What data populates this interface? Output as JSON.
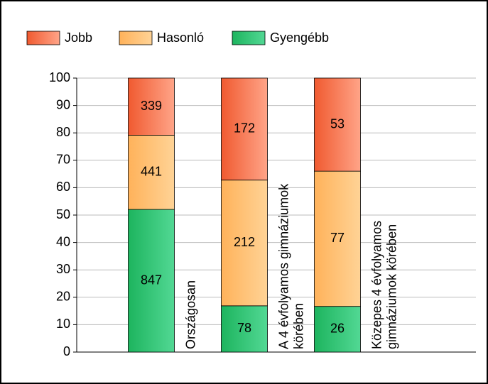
{
  "chart_data": {
    "type": "bar",
    "stacking": "percent",
    "categories": [
      [
        "Országosan"
      ],
      [
        "A 4 évfolyamos gimnáziumok",
        "körében"
      ],
      [
        "Közepes 4 évfolyamos",
        "gimnáziumok körében"
      ]
    ],
    "series": [
      {
        "name": "Jobb",
        "color": [
          "#f05a30",
          "#ffa488"
        ],
        "values": [
          339,
          172,
          53
        ]
      },
      {
        "name": "Hasonló",
        "color": [
          "#ffb25a",
          "#ffd396"
        ],
        "values": [
          441,
          212,
          77
        ]
      },
      {
        "name": "Gyengébb",
        "color": [
          "#1db45e",
          "#52d894"
        ],
        "values": [
          847,
          78,
          26
        ]
      }
    ],
    "ylim": [
      0,
      100
    ],
    "yticks": [
      0,
      10,
      20,
      30,
      40,
      50,
      60,
      70,
      80,
      90,
      100
    ],
    "grid": true,
    "legend": "top"
  }
}
